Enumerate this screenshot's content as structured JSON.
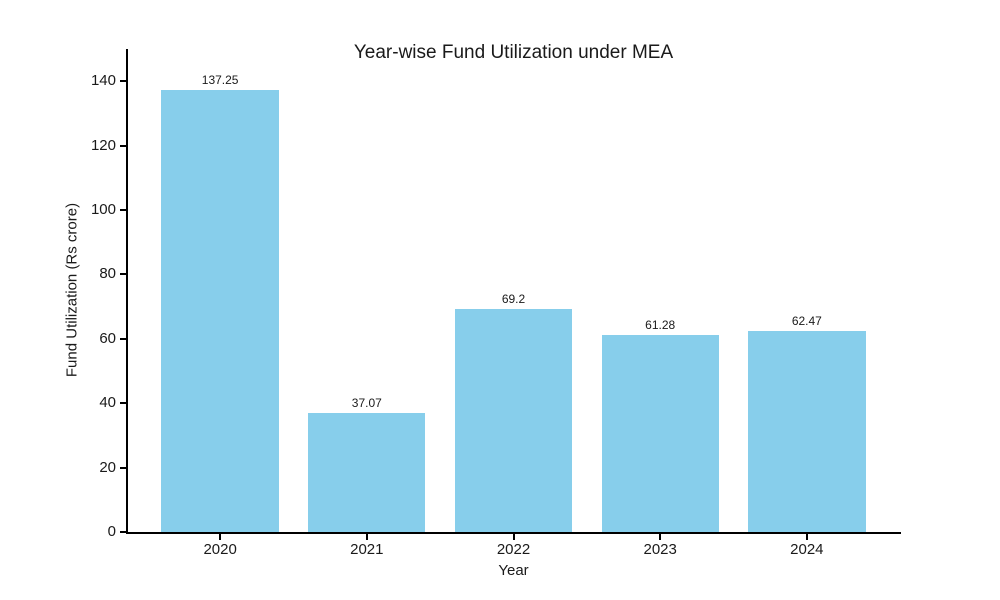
{
  "chart_data": {
    "type": "bar",
    "title": "Year-wise Fund Utilization under MEA",
    "xlabel": "Year",
    "ylabel": "Fund Utilization (Rs crore)",
    "categories": [
      "2020",
      "2021",
      "2022",
      "2023",
      "2024"
    ],
    "values": [
      137.25,
      37.07,
      69.2,
      61.28,
      62.47
    ],
    "value_labels": [
      "137.25",
      "37.07",
      "69.2",
      "61.28",
      "62.47"
    ],
    "yticks": [
      0,
      20,
      40,
      60,
      80,
      100,
      120,
      140
    ],
    "ylim": [
      0,
      150
    ],
    "grid": false,
    "legend": null,
    "bar_color": "#87CEEB",
    "axis_color": "#000000",
    "text_color": "#1a1a1a",
    "background_color": "#ffffff"
  }
}
